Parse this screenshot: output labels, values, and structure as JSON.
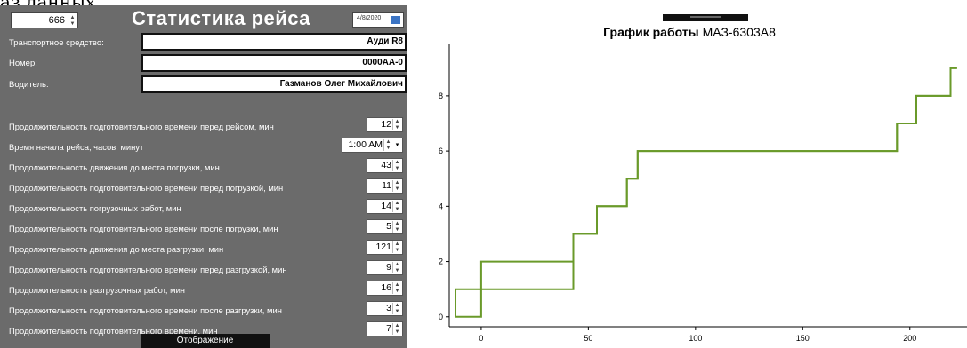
{
  "partial_top_text": "аз данных.",
  "form": {
    "id_value": "666",
    "title": "Статистика рейса",
    "date_value": "4/8/2020",
    "fields": [
      {
        "label": "Транспортное средство:",
        "value": "Ауди R8"
      },
      {
        "label": "Номер:",
        "value": "0000АА-0"
      },
      {
        "label": "Водитель:",
        "value": "Газманов Олег Михайлович"
      }
    ],
    "params": [
      {
        "label": "Продолжительность подготовительного времени перед рейсом, мин",
        "value": "12"
      },
      {
        "label": "Время начала рейса, часов, минут",
        "value": "1:00 AM"
      },
      {
        "label": "Продолжительность движения до места погрузки, мин",
        "value": "43"
      },
      {
        "label": "Продолжительность подготовительного времени перед погрузкой, мин",
        "value": "11"
      },
      {
        "label": "Продолжительность погрузочных работ, мин",
        "value": "14"
      },
      {
        "label": "Продолжительность подготовительного времени после погрузки, мин",
        "value": "5"
      },
      {
        "label": "Продолжительность движения до места разгрузки, мин",
        "value": "121"
      },
      {
        "label": "Продолжительность подготовительного времени перед разгрузкой, мин",
        "value": "9"
      },
      {
        "label": "Продолжительность разгрузочных работ, мин",
        "value": "16"
      },
      {
        "label": "Продолжительность подготовительного времени после разгрузки, мин",
        "value": "3"
      },
      {
        "label": "Продолжительность подготовительного времени, мин",
        "value": "7"
      }
    ],
    "display_button": "Отображение"
  },
  "chart_data": {
    "type": "line",
    "title_bold": "График работы",
    "title_rest": "МАЗ-6303А8",
    "xlim": [
      -12,
      225
    ],
    "ylim": [
      -0.2,
      9.7
    ],
    "xticks": [
      0,
      50,
      100,
      150,
      200
    ],
    "yticks": [
      0,
      2,
      4,
      6,
      8
    ],
    "grid": false,
    "line_color": "#6a9a2a",
    "series": [
      {
        "x": [
          -12,
          0,
          0,
          43,
          43,
          54,
          54,
          68,
          68,
          73,
          73,
          194,
          194,
          203,
          203,
          219,
          219,
          222
        ],
        "y": [
          0,
          0,
          2,
          2,
          3,
          3,
          4,
          4,
          5,
          5,
          6,
          6,
          7,
          7,
          8,
          8,
          9,
          9
        ]
      },
      {
        "x": [
          -12,
          -12,
          0,
          0,
          43,
          43,
          54,
          54,
          68,
          68,
          73,
          73,
          194,
          194,
          203,
          203,
          219,
          219,
          222
        ],
        "y": [
          0,
          1,
          1,
          1,
          1,
          3,
          3,
          4,
          4,
          5,
          5,
          6,
          6,
          7,
          7,
          8,
          8,
          9,
          9
        ]
      }
    ]
  }
}
